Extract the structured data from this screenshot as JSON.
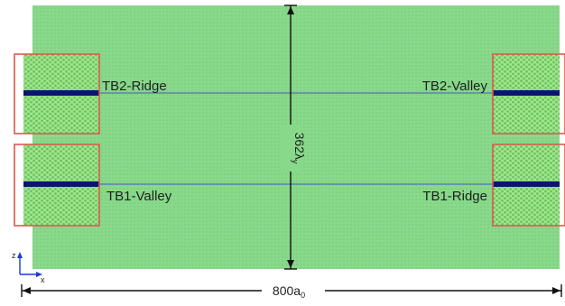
{
  "labels": {
    "tb2_ridge": "TB2-Ridge",
    "tb2_valley": "TB2-Valley",
    "tb1_valley": "TB1-Valley",
    "tb1_ridge": "TB1-Ridge"
  },
  "dimensions": {
    "height_base": "362λ",
    "height_sub": "y",
    "width_base": "800a",
    "width_sub": "0"
  },
  "axes": {
    "vertical": "z",
    "horizontal": "x"
  },
  "colors": {
    "slab": "#88d98a",
    "slab_texture": "#7fcf83",
    "hex_region": "#9ee68e",
    "hex_dot": "#6cbf5a",
    "boundary_line": "#4a55c8",
    "boundary_atoms": "#0d1470",
    "box_outline": "#e0584e"
  }
}
